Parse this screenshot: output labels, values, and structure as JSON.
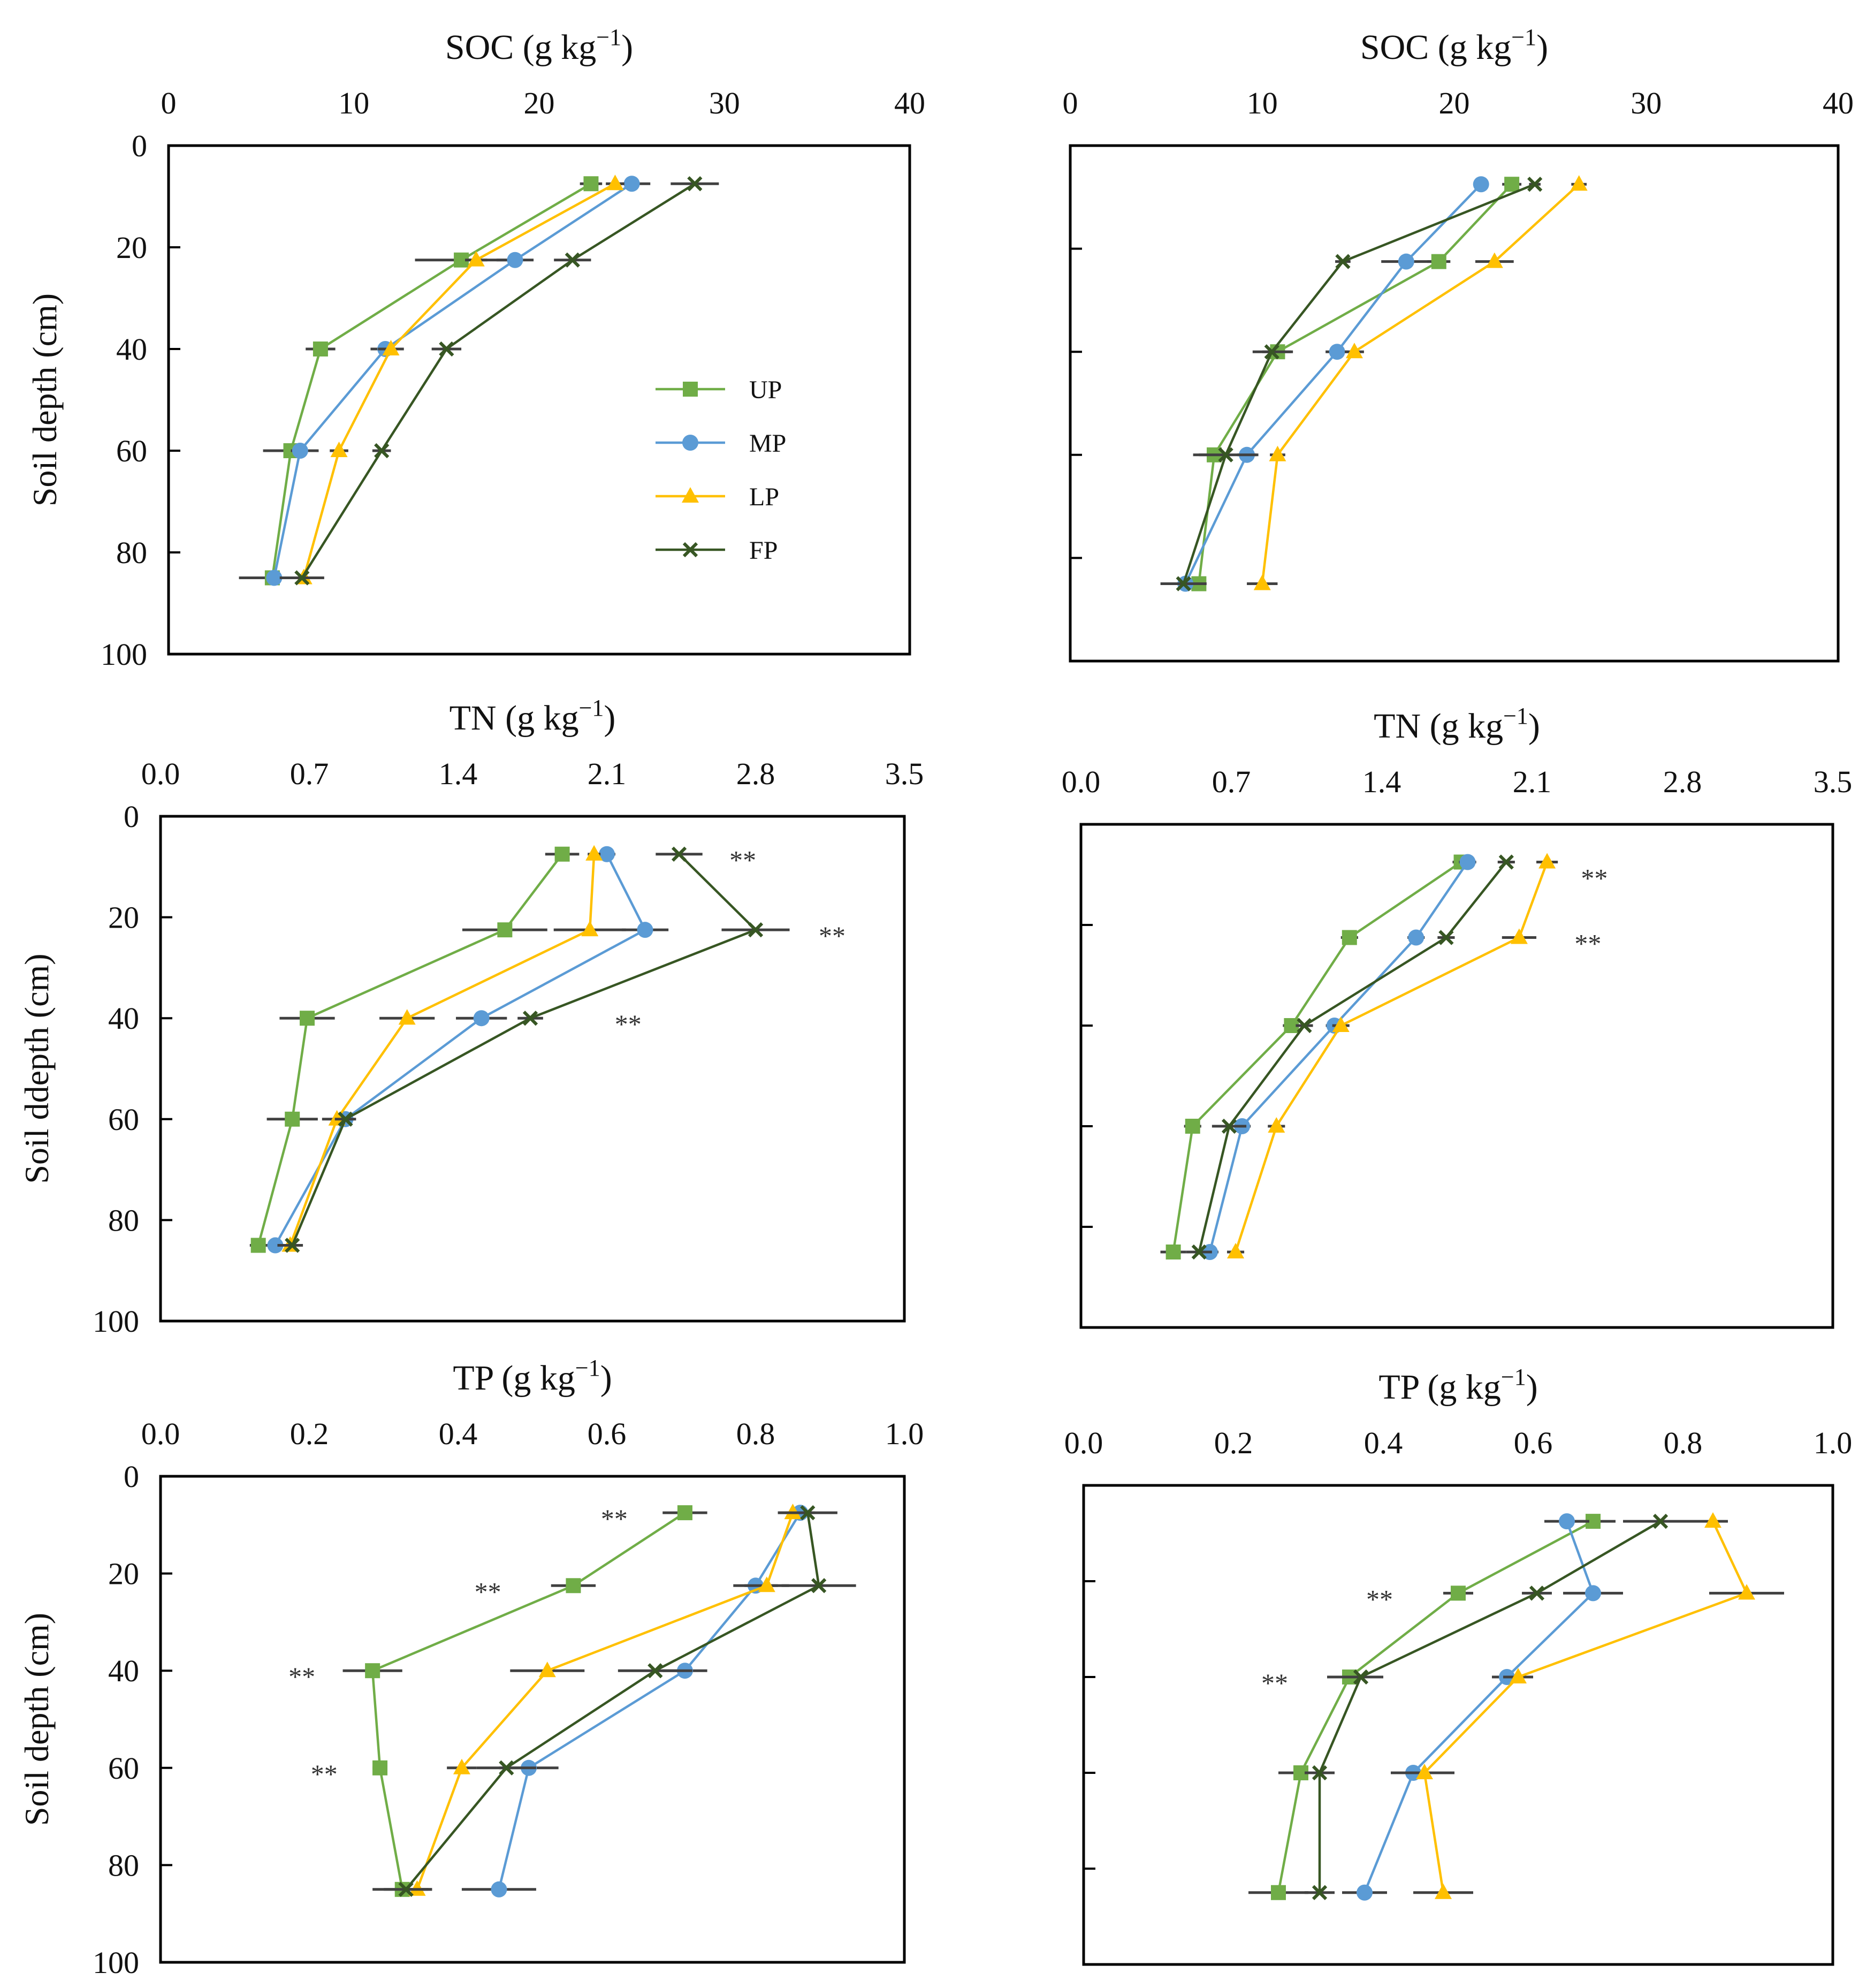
{
  "colors": {
    "UP": "#70ad47",
    "MP": "#5b9bd5",
    "LP": "#ffc000",
    "FP": "#375623",
    "errorbar": "#404040",
    "axis": "#000000"
  },
  "legend": {
    "entries": [
      "UP",
      "MP",
      "LP",
      "FP"
    ],
    "markers": {
      "UP": "square",
      "MP": "circle",
      "LP": "triangle",
      "FP": "x"
    }
  },
  "chart_data": [
    {
      "type": "line",
      "panel": "top-left",
      "title": "SOC (g kg⁻¹)",
      "title_main": "SOC (g kg",
      "title_sup": "−1",
      "title_close": ")",
      "ylabel": "Soil depth (cm)",
      "xlim": [
        0,
        40
      ],
      "ylim": [
        0,
        100
      ],
      "xticks": [
        "0",
        "10",
        "20",
        "30",
        "40"
      ],
      "xtick_values": [
        0,
        10,
        20,
        30,
        40
      ],
      "yticks": [
        "0",
        "20",
        "40",
        "60",
        "80",
        "100"
      ],
      "ytick_values": [
        0,
        20,
        40,
        60,
        80,
        100
      ],
      "legend_position": "center-right",
      "depths": [
        7.5,
        22.5,
        40,
        60,
        85
      ],
      "series": [
        {
          "name": "UP",
          "x": [
            22.8,
            15.8,
            8.2,
            6.6,
            5.6
          ],
          "err": [
            0.6,
            2.5,
            0.8,
            1.5,
            1.8
          ]
        },
        {
          "name": "MP",
          "x": [
            25.0,
            18.7,
            11.7,
            7.1,
            5.7
          ],
          "err": [
            1.0,
            1.0,
            0.8,
            0.5,
            0.4
          ]
        },
        {
          "name": "LP",
          "x": [
            24.1,
            16.6,
            12.0,
            9.2,
            7.3
          ],
          "err": [
            0.5,
            0.6,
            0.7,
            0.5,
            0.5
          ]
        },
        {
          "name": "FP",
          "x": [
            28.4,
            21.8,
            15.0,
            11.5,
            7.2
          ],
          "err": [
            1.3,
            1.0,
            0.8,
            0.5,
            1.2
          ]
        }
      ]
    },
    {
      "type": "line",
      "panel": "top-right",
      "title": "SOC (g kg⁻¹)",
      "title_main": "SOC (g kg",
      "title_sup": "−1",
      "title_close": ")",
      "xlim": [
        0,
        40
      ],
      "ylim": [
        0,
        100
      ],
      "xticks": [
        "0",
        "10",
        "20",
        "30",
        "40"
      ],
      "xtick_values": [
        0,
        10,
        20,
        30,
        40
      ],
      "yticks": [],
      "ytick_values": [
        20,
        40,
        60,
        80
      ],
      "depths": [
        7.5,
        22.5,
        40,
        60,
        85
      ],
      "series": [
        {
          "name": "UP",
          "x": [
            23.0,
            19.2,
            10.8,
            7.5,
            6.7
          ],
          "err": [
            0.5,
            0.6,
            0.8,
            0.8,
            0.4
          ]
        },
        {
          "name": "MP",
          "x": [
            21.4,
            17.5,
            13.9,
            9.2,
            6.0
          ],
          "err": [
            0.4,
            1.3,
            0.6,
            0.5,
            0.3
          ]
        },
        {
          "name": "LP",
          "x": [
            26.5,
            22.1,
            14.8,
            10.8,
            10.0
          ],
          "err": [
            0.4,
            1.0,
            0.5,
            0.4,
            0.8
          ]
        },
        {
          "name": "FP",
          "x": [
            24.2,
            14.2,
            10.5,
            8.1,
            5.9
          ],
          "err": [
            0.3,
            0.4,
            1.0,
            1.7,
            1.2
          ]
        }
      ]
    },
    {
      "type": "line",
      "panel": "middle-left",
      "title": "TN (g kg⁻¹)",
      "title_main": "TN (g kg",
      "title_sup": "−1",
      "title_close": ")",
      "ylabel": "Soil ddepth (cm)",
      "xlim": [
        0,
        3.5
      ],
      "ylim": [
        0,
        100
      ],
      "xticks": [
        "0.0",
        "0.7",
        "1.4",
        "2.1",
        "2.8",
        "3.5"
      ],
      "xtick_values": [
        0,
        0.7,
        1.4,
        2.1,
        2.8,
        3.5
      ],
      "yticks": [
        "0",
        "20",
        "40",
        "60",
        "80",
        "100"
      ],
      "ytick_values": [
        0,
        20,
        40,
        60,
        80,
        100
      ],
      "depths": [
        7.5,
        22.5,
        40,
        60,
        85
      ],
      "series": [
        {
          "name": "UP",
          "x": [
            1.89,
            1.62,
            0.69,
            0.62,
            0.46
          ],
          "err": [
            0.08,
            0.2,
            0.13,
            0.12,
            0.04
          ]
        },
        {
          "name": "MP",
          "x": [
            2.1,
            2.28,
            1.51,
            0.87,
            0.54
          ],
          "err": [
            0.04,
            0.11,
            0.12,
            0.04,
            0.04
          ]
        },
        {
          "name": "LP",
          "x": [
            2.04,
            2.02,
            1.16,
            0.83,
            0.61
          ],
          "err": [
            0.03,
            0.17,
            0.13,
            0.07,
            0.06
          ]
        },
        {
          "name": "FP",
          "x": [
            2.44,
            2.8,
            1.74,
            0.87,
            0.62
          ],
          "err": [
            0.11,
            0.16,
            0.06,
            0.05,
            0.04
          ]
        }
      ],
      "annotations": [
        {
          "text": "**",
          "depth": 7.5,
          "x": 2.74
        },
        {
          "text": "**",
          "depth": 22.5,
          "x": 3.16
        },
        {
          "text": "**",
          "depth": 40,
          "x": 2.2
        }
      ]
    },
    {
      "type": "line",
      "panel": "middle-right",
      "title": "TN (g kg⁻¹)",
      "title_main": "TN (g kg",
      "title_sup": "−1",
      "title_close": ")",
      "xlim": [
        0,
        3.5
      ],
      "ylim": [
        0,
        100
      ],
      "xticks": [
        "0.0",
        "0.7",
        "1.4",
        "2.1",
        "2.8",
        "3.5"
      ],
      "xtick_values": [
        0,
        0.7,
        1.4,
        2.1,
        2.8,
        3.5
      ],
      "yticks": [],
      "ytick_values": [
        20,
        40,
        60,
        80
      ],
      "depths": [
        7.5,
        22.5,
        40,
        60,
        85
      ],
      "series": [
        {
          "name": "UP",
          "x": [
            1.77,
            1.25,
            0.98,
            0.52,
            0.43
          ],
          "err": [
            0.04,
            0.04,
            0.04,
            0.04,
            0.06
          ]
        },
        {
          "name": "MP",
          "x": [
            1.8,
            1.56,
            1.18,
            0.75,
            0.6
          ],
          "err": [
            0.04,
            0.04,
            0.04,
            0.04,
            0.04
          ]
        },
        {
          "name": "LP",
          "x": [
            2.17,
            2.04,
            1.21,
            0.91,
            0.72
          ],
          "err": [
            0.05,
            0.08,
            0.04,
            0.04,
            0.04
          ]
        },
        {
          "name": "FP",
          "x": [
            1.98,
            1.7,
            1.04,
            0.69,
            0.55
          ],
          "err": [
            0.04,
            0.04,
            0.04,
            0.08,
            0.06
          ]
        }
      ],
      "annotations": [
        {
          "text": "**",
          "depth": 9.5,
          "x": 2.39
        },
        {
          "text": "**",
          "depth": 22.5,
          "x": 2.36
        }
      ]
    },
    {
      "type": "line",
      "panel": "bottom-left",
      "title": "TP (g kg⁻¹)",
      "title_main": "TP (g kg",
      "title_sup": "−1",
      "title_close": ")",
      "ylabel": "Soil depth (cm)",
      "xlim": [
        0,
        1.0
      ],
      "ylim": [
        0,
        100
      ],
      "xticks": [
        "0.0",
        "0.2",
        "0.4",
        "0.6",
        "0.8",
        "1.0"
      ],
      "xtick_values": [
        0,
        0.2,
        0.4,
        0.6,
        0.8,
        1.0
      ],
      "yticks": [
        "0",
        "20",
        "40",
        "60",
        "80",
        "100"
      ],
      "ytick_values": [
        0,
        20,
        40,
        60,
        80,
        100
      ],
      "depths": [
        7.5,
        22.5,
        40,
        60,
        85
      ],
      "series": [
        {
          "name": "UP",
          "x": [
            0.705,
            0.555,
            0.285,
            0.295,
            0.325
          ],
          "err": [
            0.03,
            0.03,
            0.04,
            0.01,
            0.04
          ]
        },
        {
          "name": "MP",
          "x": [
            0.86,
            0.8,
            0.705,
            0.495,
            0.455
          ],
          "err": [
            0.02,
            0.03,
            0.03,
            0.04,
            0.05
          ]
        },
        {
          "name": "LP",
          "x": [
            0.85,
            0.815,
            0.52,
            0.405,
            0.345
          ],
          "err": [
            0.02,
            0.03,
            0.05,
            0.02,
            0.02
          ]
        },
        {
          "name": "FP",
          "x": [
            0.87,
            0.885,
            0.665,
            0.465,
            0.33
          ],
          "err": [
            0.04,
            0.05,
            0.05,
            0.04,
            0.03
          ]
        }
      ],
      "annotations": [
        {
          "text": "**",
          "depth": 7.5,
          "x": 0.61
        },
        {
          "text": "**",
          "depth": 22.5,
          "x": 0.44
        },
        {
          "text": "**",
          "depth": 40,
          "x": 0.19
        },
        {
          "text": "**",
          "depth": 60,
          "x": 0.22
        }
      ]
    },
    {
      "type": "line",
      "panel": "bottom-right",
      "title": "TP (g kg⁻¹)",
      "title_main": "TP (g kg",
      "title_sup": "−1",
      "title_close": ")",
      "xlim": [
        0,
        1.0
      ],
      "ylim": [
        0,
        100
      ],
      "xticks": [
        "0.0",
        "0.2",
        "0.4",
        "0.6",
        "0.8",
        "1.0"
      ],
      "xtick_values": [
        0,
        0.2,
        0.4,
        0.6,
        0.8,
        1.0
      ],
      "yticks": [],
      "ytick_values": [
        20,
        40,
        60,
        80
      ],
      "depths": [
        7.5,
        22.5,
        40,
        60,
        85
      ],
      "series": [
        {
          "name": "UP",
          "x": [
            0.68,
            0.5,
            0.355,
            0.29,
            0.26
          ],
          "err": [
            0.03,
            0.02,
            0.03,
            0.03,
            0.04
          ]
        },
        {
          "name": "MP",
          "x": [
            0.645,
            0.68,
            0.565,
            0.44,
            0.375
          ],
          "err": [
            0.03,
            0.04,
            0.02,
            0.03,
            0.03
          ]
        },
        {
          "name": "LP",
          "x": [
            0.84,
            0.885,
            0.58,
            0.455,
            0.48
          ],
          "err": [
            0.02,
            0.05,
            0.02,
            0.04,
            0.04
          ]
        },
        {
          "name": "FP",
          "x": [
            0.77,
            0.605,
            0.37,
            0.315,
            0.315
          ],
          "err": [
            0.05,
            0.02,
            0.03,
            0.02,
            0.02
          ]
        }
      ],
      "annotations": [
        {
          "text": "**",
          "depth": 22.5,
          "x": 0.395
        },
        {
          "text": "**",
          "depth": 40,
          "x": 0.255
        }
      ]
    }
  ]
}
